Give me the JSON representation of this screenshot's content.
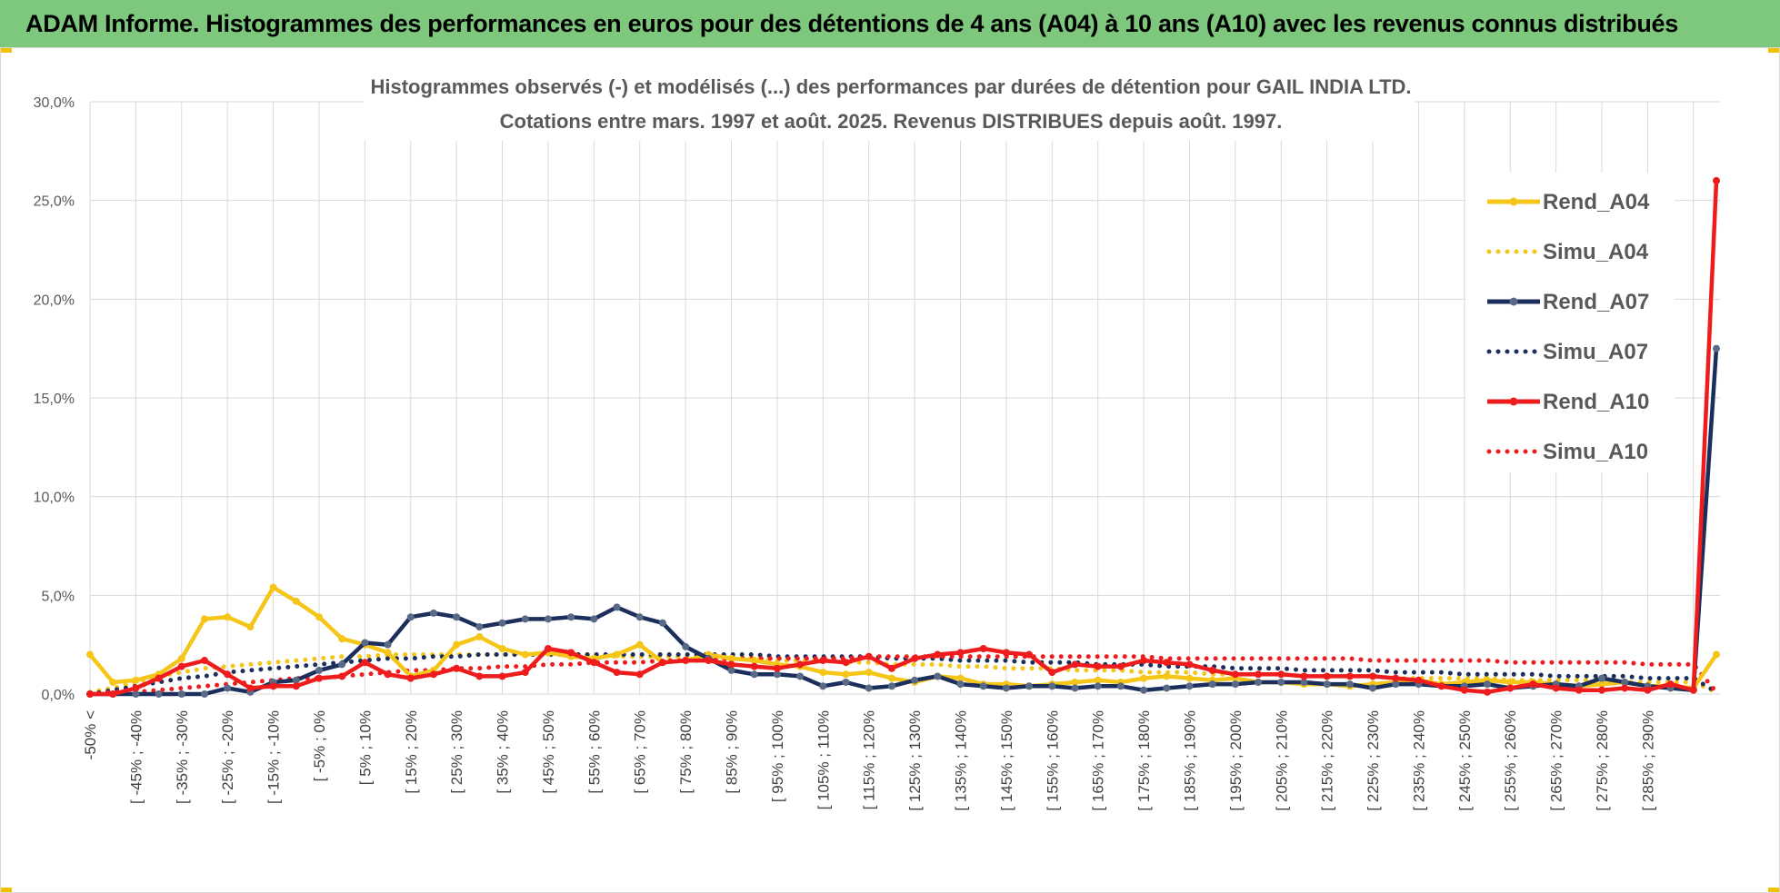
{
  "banner": {
    "title": "ADAM Informe. Histogrammes des performances en euros pour des détentions de 4 ans (A04) à 10 ans (A10) avec les revenus connus distribués"
  },
  "colors": {
    "banner_bg": "#7dc87d",
    "a04": "#f5c518",
    "a07": "#1b2e5c",
    "a10": "#ee1c1c",
    "a07_marker": "#596a86",
    "grid": "#d9d9d9"
  },
  "chart_data": {
    "type": "line",
    "title": "Histogrammes observés (-) et modélisés (...) des performances par durées de détention pour GAIL INDIA LTD.",
    "subtitle": "Cotations entre mars. 1997 et août. 2025. Revenus DISTRIBUES depuis août. 1997.",
    "xlabel": "",
    "ylabel": "",
    "ylim": [
      0,
      30
    ],
    "yticks": [
      "0,0%",
      "5,0%",
      "10,0%",
      "15,0%",
      "20,0%",
      "25,0%",
      "30,0%"
    ],
    "grid": true,
    "legend_position": "top-right",
    "x_tick_labels": [
      "-50% <",
      "[ -45% ; -40%",
      "[ -35% ; -30%",
      "[ -25% ; -20%",
      "[ -15% ; -10%",
      "[ -5% ; 0%",
      "[ 5% ; 10%",
      "[ 15% ; 20%",
      "[ 25% ; 30%",
      "[ 35% ; 40%",
      "[ 45% ; 50%",
      "[ 55% ; 60%",
      "[ 65% ; 70%",
      "[ 75% ; 80%",
      "[ 85% ; 90%",
      "[ 95% ; 100%",
      "[ 105% ; 110%",
      "[ 115% ; 120%",
      "[ 125% ; 130%",
      "[ 135% ; 140%",
      "[ 145% ; 150%",
      "[ 155% ; 160%",
      "[ 165% ; 170%",
      "[ 175% ; 180%",
      "[ 185% ; 190%",
      "[ 195% ; 200%",
      "[ 205% ; 210%",
      "[ 215% ; 220%",
      "[ 225% ; 230%",
      "[ 235% ; 240%",
      "[ 245% ; 250%",
      "[ 255% ; 260%",
      "[ 265% ; 270%",
      "[ 275% ; 280%",
      "[ 285% ; 290%"
    ],
    "series": [
      {
        "name": "Rend_A04",
        "style": "solid",
        "values": [
          2.0,
          0.6,
          0.7,
          1.0,
          1.8,
          3.8,
          3.9,
          3.4,
          5.4,
          4.7,
          3.9,
          2.8,
          2.5,
          2.1,
          0.9,
          1.2,
          2.5,
          2.9,
          2.3,
          2.0,
          2.1,
          1.9,
          1.8,
          2.0,
          2.5,
          1.6,
          1.7,
          2.0,
          1.8,
          1.7,
          1.5,
          1.4,
          1.1,
          1.0,
          1.1,
          0.8,
          0.6,
          0.9,
          0.8,
          0.5,
          0.5,
          0.4,
          0.5,
          0.6,
          0.7,
          0.6,
          0.8,
          0.9,
          0.8,
          0.7,
          0.8,
          0.6,
          0.6,
          0.5,
          0.5,
          0.4,
          0.5,
          0.6,
          0.7,
          0.5,
          0.6,
          0.7,
          0.6,
          0.6,
          0.5,
          0.4,
          0.5,
          0.6,
          0.4,
          0.4,
          0.3,
          2.0
        ]
      },
      {
        "name": "Simu_A04",
        "style": "dotted",
        "values": [
          0.1,
          0.3,
          0.6,
          0.9,
          1.1,
          1.3,
          1.4,
          1.5,
          1.6,
          1.7,
          1.8,
          1.9,
          1.9,
          2.0,
          2.0,
          2.0,
          2.0,
          2.0,
          2.0,
          2.0,
          2.0,
          2.0,
          2.0,
          1.9,
          1.9,
          1.9,
          1.9,
          1.8,
          1.8,
          1.8,
          1.7,
          1.7,
          1.7,
          1.6,
          1.6,
          1.5,
          1.5,
          1.5,
          1.4,
          1.4,
          1.3,
          1.3,
          1.3,
          1.2,
          1.2,
          1.2,
          1.1,
          1.1,
          1.1,
          1.0,
          1.0,
          1.0,
          1.0,
          0.9,
          0.9,
          0.9,
          0.9,
          0.8,
          0.8,
          0.8,
          0.8,
          0.8,
          0.7,
          0.7,
          0.7,
          0.7,
          0.7,
          0.6,
          0.6,
          0.6,
          0.6,
          0.1
        ]
      },
      {
        "name": "Rend_A07",
        "style": "solid",
        "values": [
          0.0,
          0.0,
          0.0,
          0.0,
          0.0,
          0.0,
          0.3,
          0.1,
          0.6,
          0.7,
          1.2,
          1.5,
          2.6,
          2.5,
          3.9,
          4.1,
          3.9,
          3.4,
          3.6,
          3.8,
          3.8,
          3.9,
          3.8,
          4.4,
          3.9,
          3.6,
          2.4,
          1.8,
          1.2,
          1.0,
          1.0,
          0.9,
          0.4,
          0.6,
          0.3,
          0.4,
          0.7,
          0.9,
          0.5,
          0.4,
          0.3,
          0.4,
          0.4,
          0.3,
          0.4,
          0.4,
          0.2,
          0.3,
          0.4,
          0.5,
          0.5,
          0.6,
          0.6,
          0.6,
          0.5,
          0.5,
          0.3,
          0.5,
          0.5,
          0.4,
          0.4,
          0.5,
          0.3,
          0.4,
          0.5,
          0.4,
          0.8,
          0.6,
          0.4,
          0.3,
          0.2,
          17.5
        ]
      },
      {
        "name": "Simu_A07",
        "style": "dotted",
        "values": [
          0.0,
          0.2,
          0.4,
          0.6,
          0.8,
          0.9,
          1.1,
          1.2,
          1.3,
          1.4,
          1.5,
          1.6,
          1.7,
          1.8,
          1.8,
          1.9,
          1.9,
          2.0,
          2.0,
          2.0,
          2.0,
          2.0,
          2.0,
          2.0,
          2.0,
          2.0,
          2.0,
          2.0,
          2.0,
          2.0,
          1.9,
          1.9,
          1.9,
          1.9,
          1.9,
          1.8,
          1.8,
          1.8,
          1.7,
          1.7,
          1.7,
          1.6,
          1.6,
          1.6,
          1.5,
          1.5,
          1.5,
          1.4,
          1.4,
          1.4,
          1.3,
          1.3,
          1.3,
          1.2,
          1.2,
          1.2,
          1.2,
          1.1,
          1.1,
          1.1,
          1.0,
          1.0,
          1.0,
          1.0,
          0.9,
          0.9,
          0.9,
          0.9,
          0.8,
          0.8,
          0.8,
          0.1
        ]
      },
      {
        "name": "Rend_A10",
        "style": "solid",
        "values": [
          0.0,
          0.0,
          0.3,
          0.8,
          1.4,
          1.7,
          1.0,
          0.3,
          0.4,
          0.4,
          0.8,
          0.9,
          1.6,
          1.0,
          0.8,
          1.0,
          1.3,
          0.9,
          0.9,
          1.1,
          2.3,
          2.1,
          1.6,
          1.1,
          1.0,
          1.6,
          1.7,
          1.7,
          1.5,
          1.4,
          1.3,
          1.5,
          1.7,
          1.6,
          1.9,
          1.3,
          1.8,
          2.0,
          2.1,
          2.3,
          2.1,
          2.0,
          1.1,
          1.5,
          1.4,
          1.4,
          1.7,
          1.6,
          1.5,
          1.2,
          1.0,
          1.0,
          1.0,
          0.9,
          0.9,
          0.9,
          0.9,
          0.8,
          0.7,
          0.4,
          0.2,
          0.1,
          0.3,
          0.5,
          0.3,
          0.2,
          0.2,
          0.3,
          0.2,
          0.5,
          0.2,
          26.0
        ]
      },
      {
        "name": "Simu_A10",
        "style": "dotted",
        "values": [
          0.0,
          0.1,
          0.1,
          0.2,
          0.3,
          0.4,
          0.5,
          0.6,
          0.7,
          0.8,
          0.8,
          0.9,
          1.0,
          1.1,
          1.2,
          1.2,
          1.3,
          1.3,
          1.4,
          1.4,
          1.5,
          1.5,
          1.6,
          1.6,
          1.6,
          1.7,
          1.7,
          1.7,
          1.8,
          1.8,
          1.8,
          1.8,
          1.8,
          1.8,
          1.9,
          1.9,
          1.9,
          1.9,
          1.9,
          1.9,
          1.9,
          1.9,
          1.9,
          1.9,
          1.9,
          1.9,
          1.9,
          1.8,
          1.8,
          1.8,
          1.8,
          1.8,
          1.8,
          1.8,
          1.8,
          1.8,
          1.7,
          1.7,
          1.7,
          1.7,
          1.7,
          1.7,
          1.6,
          1.6,
          1.6,
          1.6,
          1.6,
          1.6,
          1.5,
          1.5,
          1.5,
          0.1
        ]
      }
    ]
  }
}
